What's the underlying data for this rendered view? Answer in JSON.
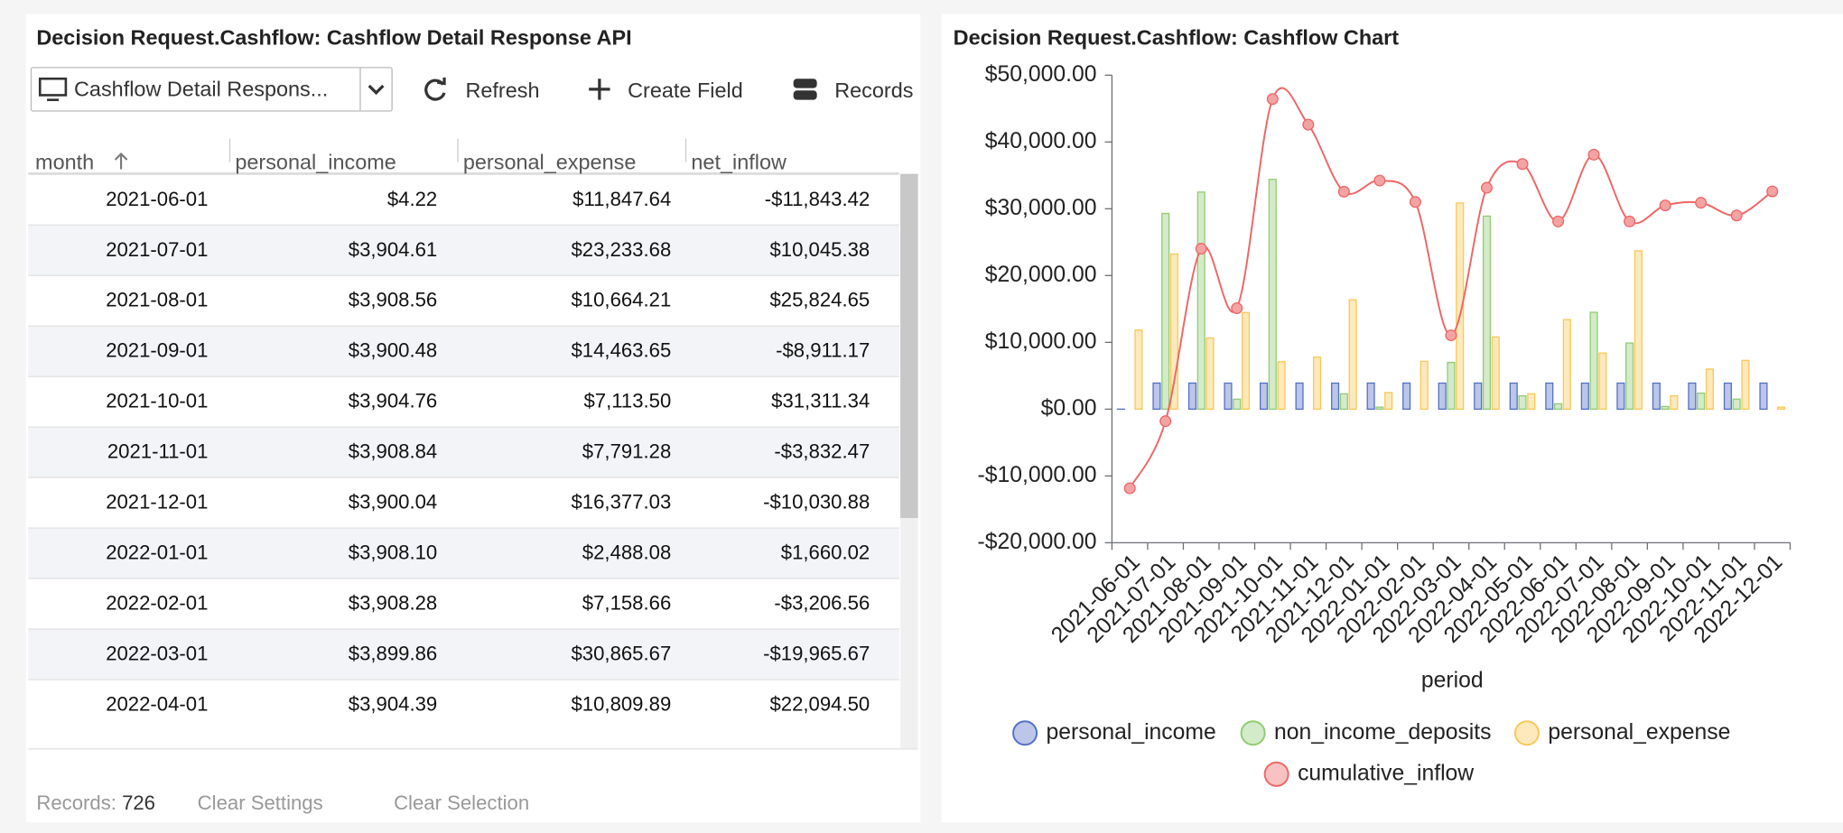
{
  "left_panel": {
    "title": "Decision Request.Cashflow: Cashflow Detail Response API",
    "toolbar": {
      "view": "Cashflow Detail Respons...",
      "refresh": "Refresh",
      "create_field": "Create Field",
      "records": "Records"
    },
    "table": {
      "columns": [
        "month",
        "personal_income",
        "personal_expense",
        "net_inflow"
      ],
      "rows": [
        [
          "2021-06-01",
          "$4.22",
          "$11,847.64",
          "-$11,843.42"
        ],
        [
          "2021-07-01",
          "$3,904.61",
          "$23,233.68",
          "$10,045.38"
        ],
        [
          "2021-08-01",
          "$3,908.56",
          "$10,664.21",
          "$25,824.65"
        ],
        [
          "2021-09-01",
          "$3,900.48",
          "$14,463.65",
          "-$8,911.17"
        ],
        [
          "2021-10-01",
          "$3,904.76",
          "$7,113.50",
          "$31,311.34"
        ],
        [
          "2021-11-01",
          "$3,908.84",
          "$7,791.28",
          "-$3,832.47"
        ],
        [
          "2021-12-01",
          "$3,900.04",
          "$16,377.03",
          "-$10,030.88"
        ],
        [
          "2022-01-01",
          "$3,908.10",
          "$2,488.08",
          "$1,660.02"
        ],
        [
          "2022-02-01",
          "$3,908.28",
          "$7,158.66",
          "-$3,206.56"
        ],
        [
          "2022-03-01",
          "$3,899.86",
          "$30,865.67",
          "-$19,965.67"
        ],
        [
          "2022-04-01",
          "$3,904.39",
          "$10,809.89",
          "$22,094.50"
        ]
      ]
    },
    "footer": {
      "records_label": "Records:",
      "records_count": 726,
      "clear_settings": "Clear Settings",
      "clear_selection": "Clear Selection"
    }
  },
  "chart_data": {
    "type": "bar",
    "title": "Decision Request.Cashflow: Cashflow Chart",
    "x_label": "period",
    "categories": [
      "2021-06-01",
      "2021-07-01",
      "2021-08-01",
      "2021-09-01",
      "2021-10-01",
      "2021-11-01",
      "2021-12-01",
      "2022-01-01",
      "2022-02-01",
      "2022-03-01",
      "2022-04-01",
      "2022-05-01",
      "2022-06-01",
      "2022-07-01",
      "2022-08-01",
      "2022-09-01",
      "2022-10-01",
      "2022-11-01",
      "2022-12-01"
    ],
    "series": [
      {
        "name": "personal_income",
        "type": "bar",
        "color": "#5470c6",
        "values": [
          4.22,
          3904.61,
          3908.56,
          3900.48,
          3904.76,
          3908.84,
          3900.04,
          3908.1,
          3908.28,
          3899.86,
          3904.39,
          3900,
          3900,
          3900,
          3900,
          3900,
          3900,
          3900,
          3900
        ]
      },
      {
        "name": "non_income_deposits",
        "type": "bar",
        "color": "#91cc75",
        "values": [
          0,
          29300,
          32500,
          1500,
          34400,
          0,
          2300,
          300,
          0,
          7000,
          28900,
          2000,
          800,
          14500,
          9900,
          400,
          2400,
          1500,
          0
        ]
      },
      {
        "name": "personal_expense",
        "type": "bar",
        "color": "#fac858",
        "values": [
          11847.64,
          23233.68,
          10664.21,
          14463.65,
          7113.5,
          7791.28,
          16377.03,
          2488.08,
          7158.66,
          30865.67,
          10809.89,
          2300,
          13400,
          8400,
          23700,
          2000,
          6000,
          7300,
          300
        ]
      },
      {
        "name": "cumulative_inflow",
        "type": "line",
        "color": "#ee6666",
        "values": [
          -11843.42,
          -1798.04,
          24026.61,
          15115.44,
          46426.78,
          42594.31,
          32563.43,
          34223.45,
          31016.89,
          11051.22,
          33145.72,
          36700,
          28100,
          38100,
          28100,
          30500,
          30900,
          29000,
          32600
        ]
      }
    ],
    "ylim": [
      -20000,
      50000
    ],
    "yticks": [
      {
        "value": -20000,
        "label": "-$20,000.00"
      },
      {
        "value": -10000,
        "label": "-$10,000.00"
      },
      {
        "value": 0,
        "label": "$0.00"
      },
      {
        "value": 10000,
        "label": "$10,000.00"
      },
      {
        "value": 20000,
        "label": "$20,000.00"
      },
      {
        "value": 30000,
        "label": "$30,000.00"
      },
      {
        "value": 40000,
        "label": "$40,000.00"
      },
      {
        "value": 50000,
        "label": "$50,000.00"
      }
    ],
    "grid": false,
    "legend": "bottom"
  }
}
